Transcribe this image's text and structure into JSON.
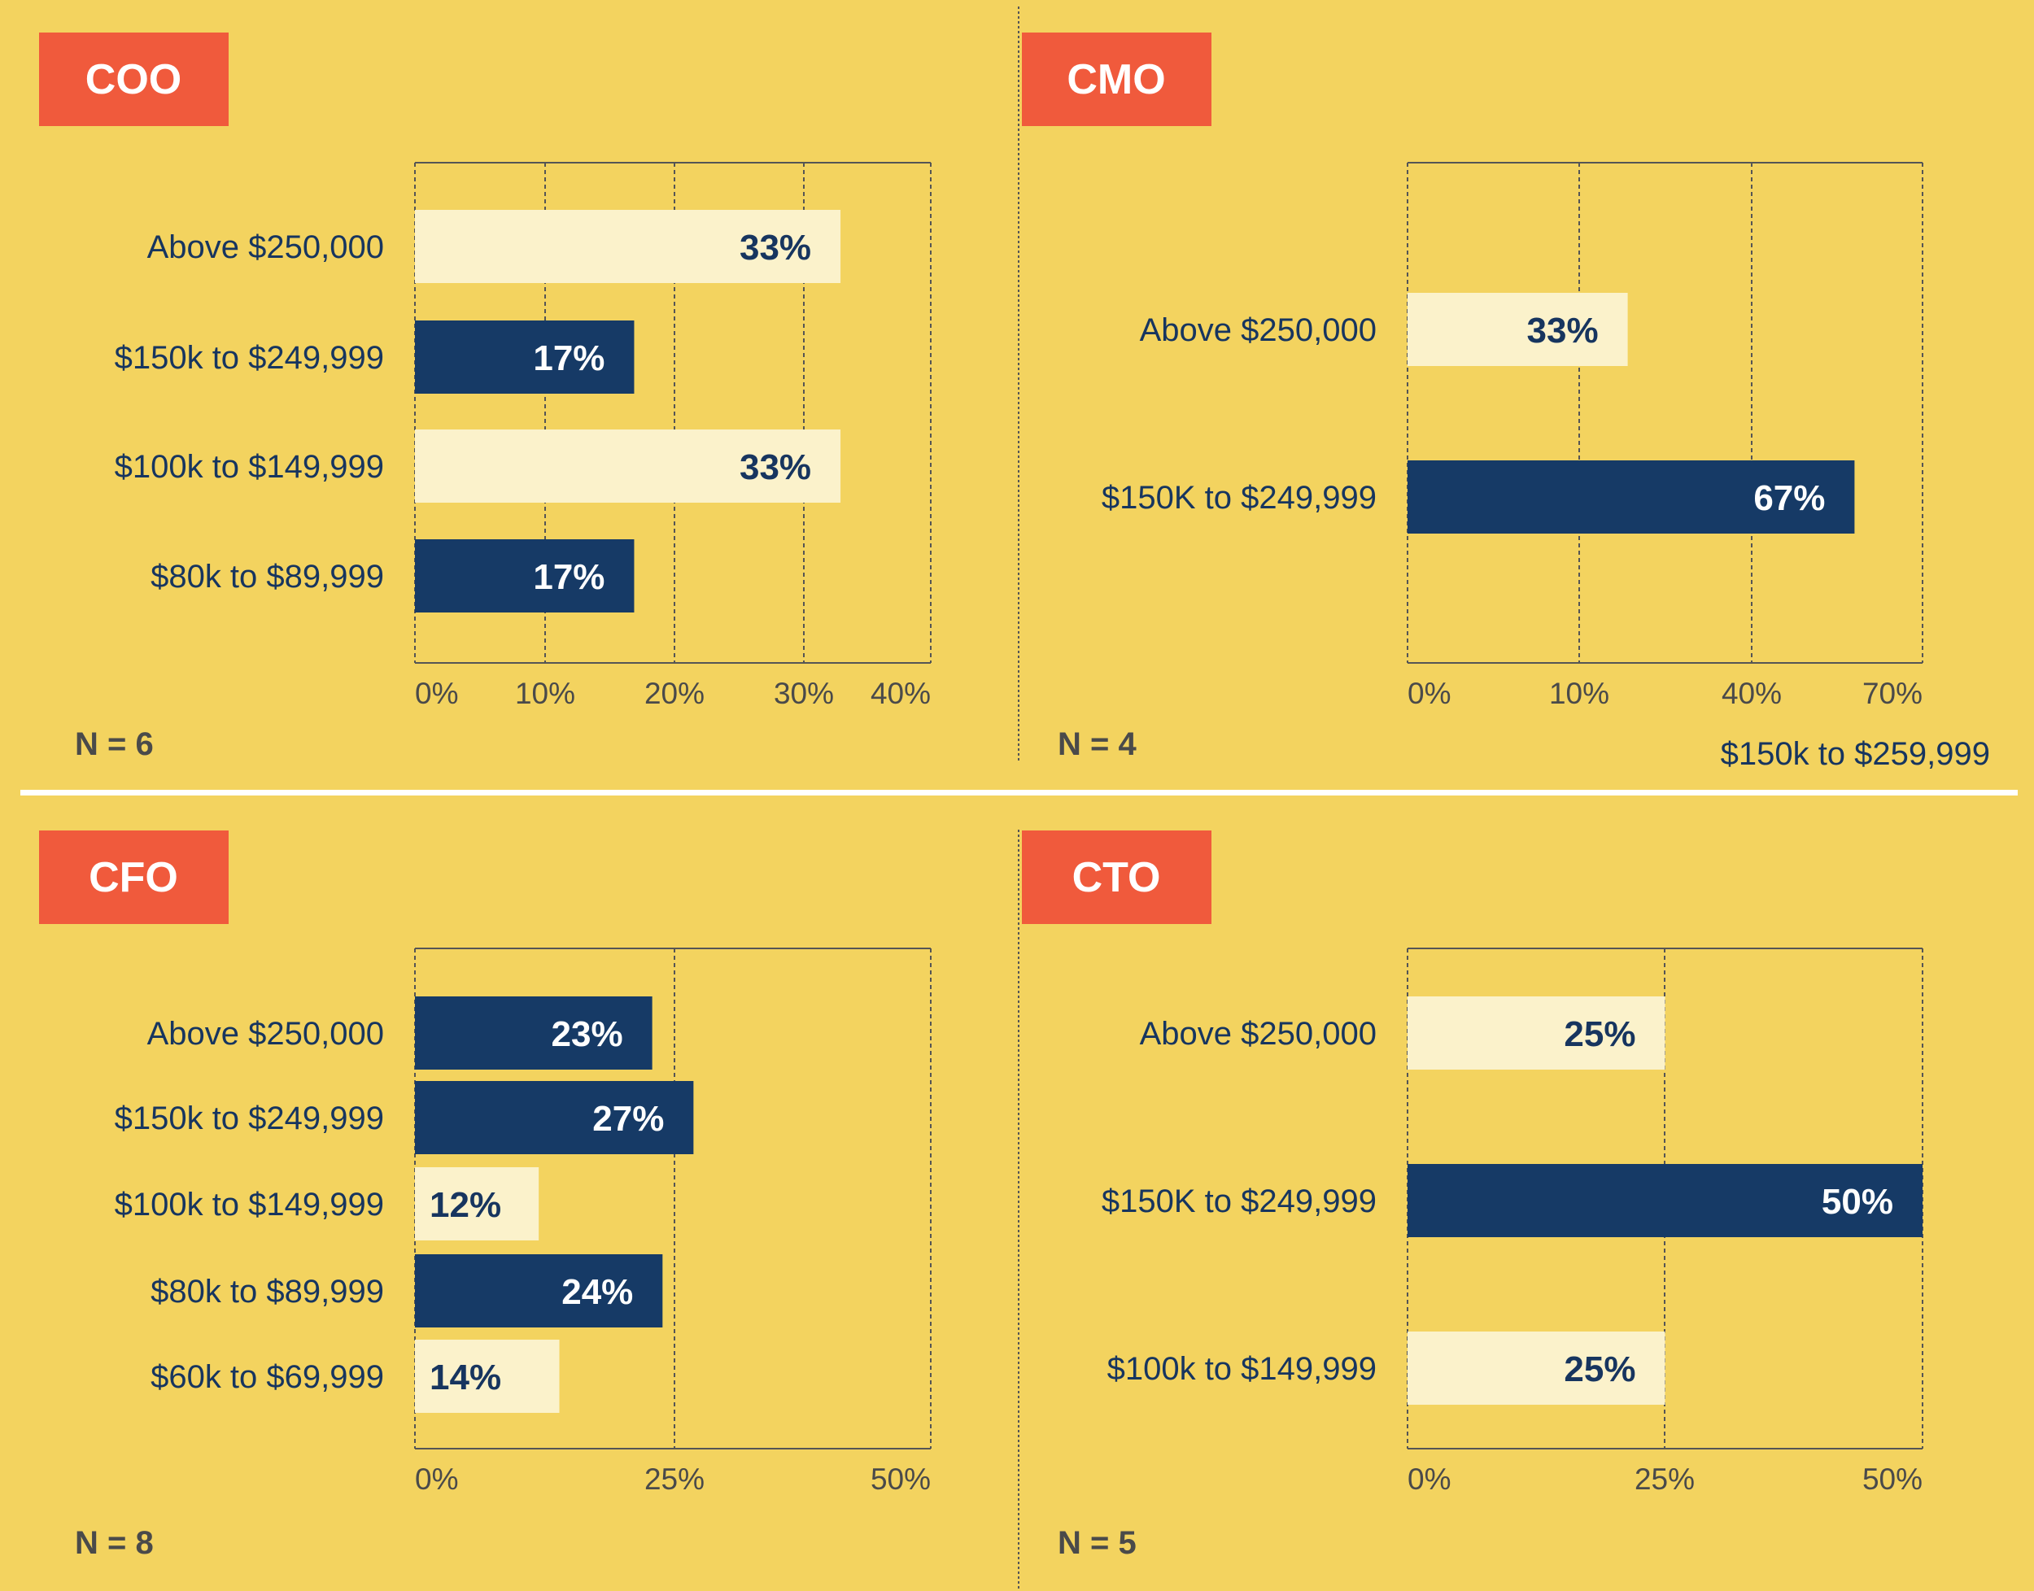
{
  "colors": {
    "background": "#f3d35f",
    "badge": "#f05a3c",
    "bar_dark": "#163a66",
    "bar_light": "#fbf2cb",
    "text_dark": "#17355f",
    "text_grey": "#4a4a4a",
    "divider": "#ffffff"
  },
  "chart_data": [
    {
      "type": "bar",
      "orientation": "horizontal",
      "title": "COO",
      "categories": [
        "Above $250,000",
        "$150k to $249,999",
        "$100k to $149,999",
        "$80k to $89,999"
      ],
      "values": [
        33,
        17,
        33,
        17
      ],
      "value_labels": [
        "33%",
        "17%",
        "33%",
        "17%"
      ],
      "bar_styles": [
        "light",
        "dark",
        "light",
        "dark"
      ],
      "x_ticks": [
        "0%",
        "10%",
        "20%",
        "30%",
        "40%"
      ],
      "xlim": [
        0,
        40
      ],
      "grid": true,
      "n_label": "N = 6"
    },
    {
      "type": "bar",
      "orientation": "horizontal",
      "title": "CMO",
      "categories": [
        "Above $250,000",
        "$150K to $249,999"
      ],
      "values": [
        33,
        67
      ],
      "value_labels": [
        "33%",
        "67%"
      ],
      "bar_styles": [
        "light",
        "dark"
      ],
      "x_ticks": [
        "0%",
        "10%",
        "40%",
        "70%"
      ],
      "grid": true,
      "n_label": "N = 4",
      "annotation": "$150k to $259,999"
    },
    {
      "type": "bar",
      "orientation": "horizontal",
      "title": "CFO",
      "categories": [
        "Above $250,000",
        "$150k to $249,999",
        "$100k to $149,999",
        "$80k to $89,999",
        "$60k to $69,999"
      ],
      "values": [
        23,
        27,
        12,
        24,
        14
      ],
      "value_labels": [
        "23%",
        "27%",
        "12%",
        "24%",
        "14%"
      ],
      "bar_styles": [
        "dark",
        "dark",
        "light",
        "dark",
        "light"
      ],
      "x_ticks": [
        "0%",
        "25%",
        "50%"
      ],
      "xlim": [
        0,
        50
      ],
      "grid": true,
      "n_label": "N = 8"
    },
    {
      "type": "bar",
      "orientation": "horizontal",
      "title": "CTO",
      "categories": [
        "Above $250,000",
        "$150K to $249,999",
        "$100k to $149,999"
      ],
      "values": [
        25,
        50,
        25
      ],
      "value_labels": [
        "25%",
        "50%",
        "25%"
      ],
      "bar_styles": [
        "light",
        "dark",
        "light"
      ],
      "x_ticks": [
        "0%",
        "25%",
        "50%"
      ],
      "xlim": [
        0,
        50
      ],
      "grid": true,
      "n_label": "N = 5"
    }
  ]
}
